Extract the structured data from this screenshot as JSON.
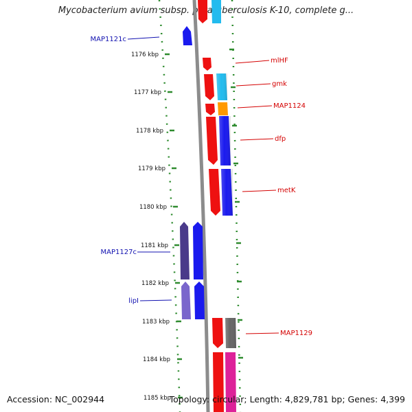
{
  "title": "Mycobacterium avium subsp. paratuberculosis K-10, complete g...",
  "footer": {
    "accession": "Accession: NC_002944",
    "topology": "Topology: circular; Length: 4,829,781 bp; Genes: 4,399"
  },
  "colors": {
    "dots": "#2e8b2e",
    "backbone": "#8c8c8c",
    "forward_label": "#d40000",
    "reverse_label": "#1010b0",
    "red": "#ee1111",
    "blue": "#1a1aee",
    "cyan": "#22bbee",
    "orange": "#ff9900",
    "dark_purple": "#4a3a8a",
    "light_purple": "#7a66cc",
    "gray": "#666666",
    "magenta": "#dd2299"
  },
  "ticks": [
    "1176 kbp",
    "1177 kbp",
    "1178 kbp",
    "1179 kbp",
    "1180 kbp",
    "1181 kbp",
    "1182 kbp",
    "1183 kbp",
    "1184 kbp",
    "1185 kbp"
  ],
  "gene_labels": {
    "left": [
      "MAP1121c",
      "MAP1127c",
      "lipI"
    ],
    "right": [
      "mlHF",
      "gmk",
      "MAP1124",
      "dfp",
      "metK",
      "MAP1129"
    ]
  }
}
